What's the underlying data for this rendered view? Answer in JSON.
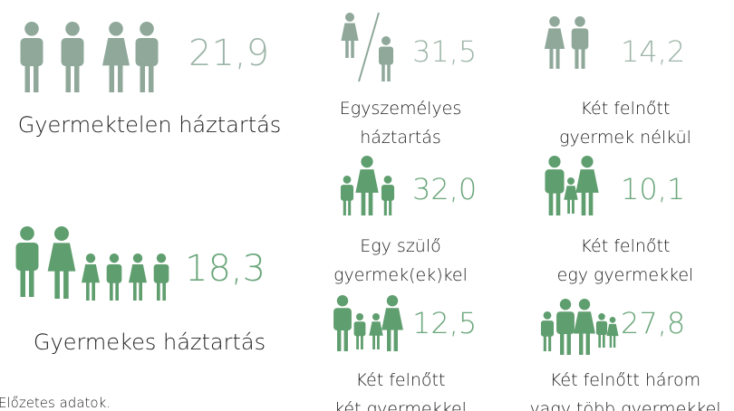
{
  "groups": [
    {
      "value": "21,9",
      "label": "Gyermektelen háztartás"
    },
    {
      "value": "18,3",
      "label": "Gyermekes háztartás"
    }
  ],
  "items": [
    {
      "value": "31,5",
      "label": [
        "Egyszemélyes",
        "háztartás"
      ]
    },
    {
      "value": "14,2",
      "label": [
        "Két felnőtt",
        "gyermek nélkül"
      ]
    },
    {
      "value": "32,0",
      "label": [
        "Egy szülő",
        "gyermek(ek)kel"
      ]
    },
    {
      "value": "10,1",
      "label": [
        "Két felnőtt",
        "egy gyermekkel"
      ]
    },
    {
      "value": "12,5",
      "label": [
        "Két felnőtt",
        "két gyermekkel"
      ]
    },
    {
      "value": "27,8",
      "label": [
        "Két felnőtt három",
        "vagy több gyermekkel"
      ]
    }
  ],
  "footnote": "Előzetes adatok."
}
